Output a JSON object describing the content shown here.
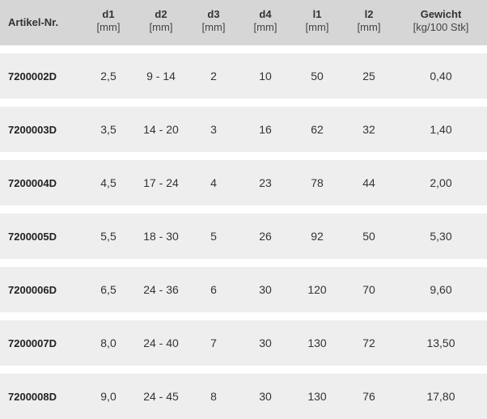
{
  "header": {
    "artikel": "Artikel-Nr.",
    "d1": {
      "name": "d1",
      "unit": "[mm]"
    },
    "d2": {
      "name": "d2",
      "unit": "[mm]"
    },
    "d3": {
      "name": "d3",
      "unit": "[mm]"
    },
    "d4": {
      "name": "d4",
      "unit": "[mm]"
    },
    "l1": {
      "name": "l1",
      "unit": "[mm]"
    },
    "l2": {
      "name": "l2",
      "unit": "[mm]"
    },
    "gewicht": {
      "name": "Gewicht",
      "unit": "[kg/100 Stk]"
    }
  },
  "rows": [
    {
      "artikel": "7200002D",
      "d1": "2,5",
      "d2": "9 - 14",
      "d3": "2",
      "d4": "10",
      "l1": "50",
      "l2": "25",
      "gewicht": "0,40"
    },
    {
      "artikel": "7200003D",
      "d1": "3,5",
      "d2": "14 - 20",
      "d3": "3",
      "d4": "16",
      "l1": "62",
      "l2": "32",
      "gewicht": "1,40"
    },
    {
      "artikel": "7200004D",
      "d1": "4,5",
      "d2": "17 - 24",
      "d3": "4",
      "d4": "23",
      "l1": "78",
      "l2": "44",
      "gewicht": "2,00"
    },
    {
      "artikel": "7200005D",
      "d1": "5,5",
      "d2": "18 - 30",
      "d3": "5",
      "d4": "26",
      "l1": "92",
      "l2": "50",
      "gewicht": "5,30"
    },
    {
      "artikel": "7200006D",
      "d1": "6,5",
      "d2": "24 - 36",
      "d3": "6",
      "d4": "30",
      "l1": "120",
      "l2": "70",
      "gewicht": "9,60"
    },
    {
      "artikel": "7200007D",
      "d1": "8,0",
      "d2": "24 - 40",
      "d3": "7",
      "d4": "30",
      "l1": "130",
      "l2": "72",
      "gewicht": "13,50"
    },
    {
      "artikel": "7200008D",
      "d1": "9,0",
      "d2": "24 - 45",
      "d3": "8",
      "d4": "30",
      "l1": "130",
      "l2": "76",
      "gewicht": "17,80"
    }
  ]
}
